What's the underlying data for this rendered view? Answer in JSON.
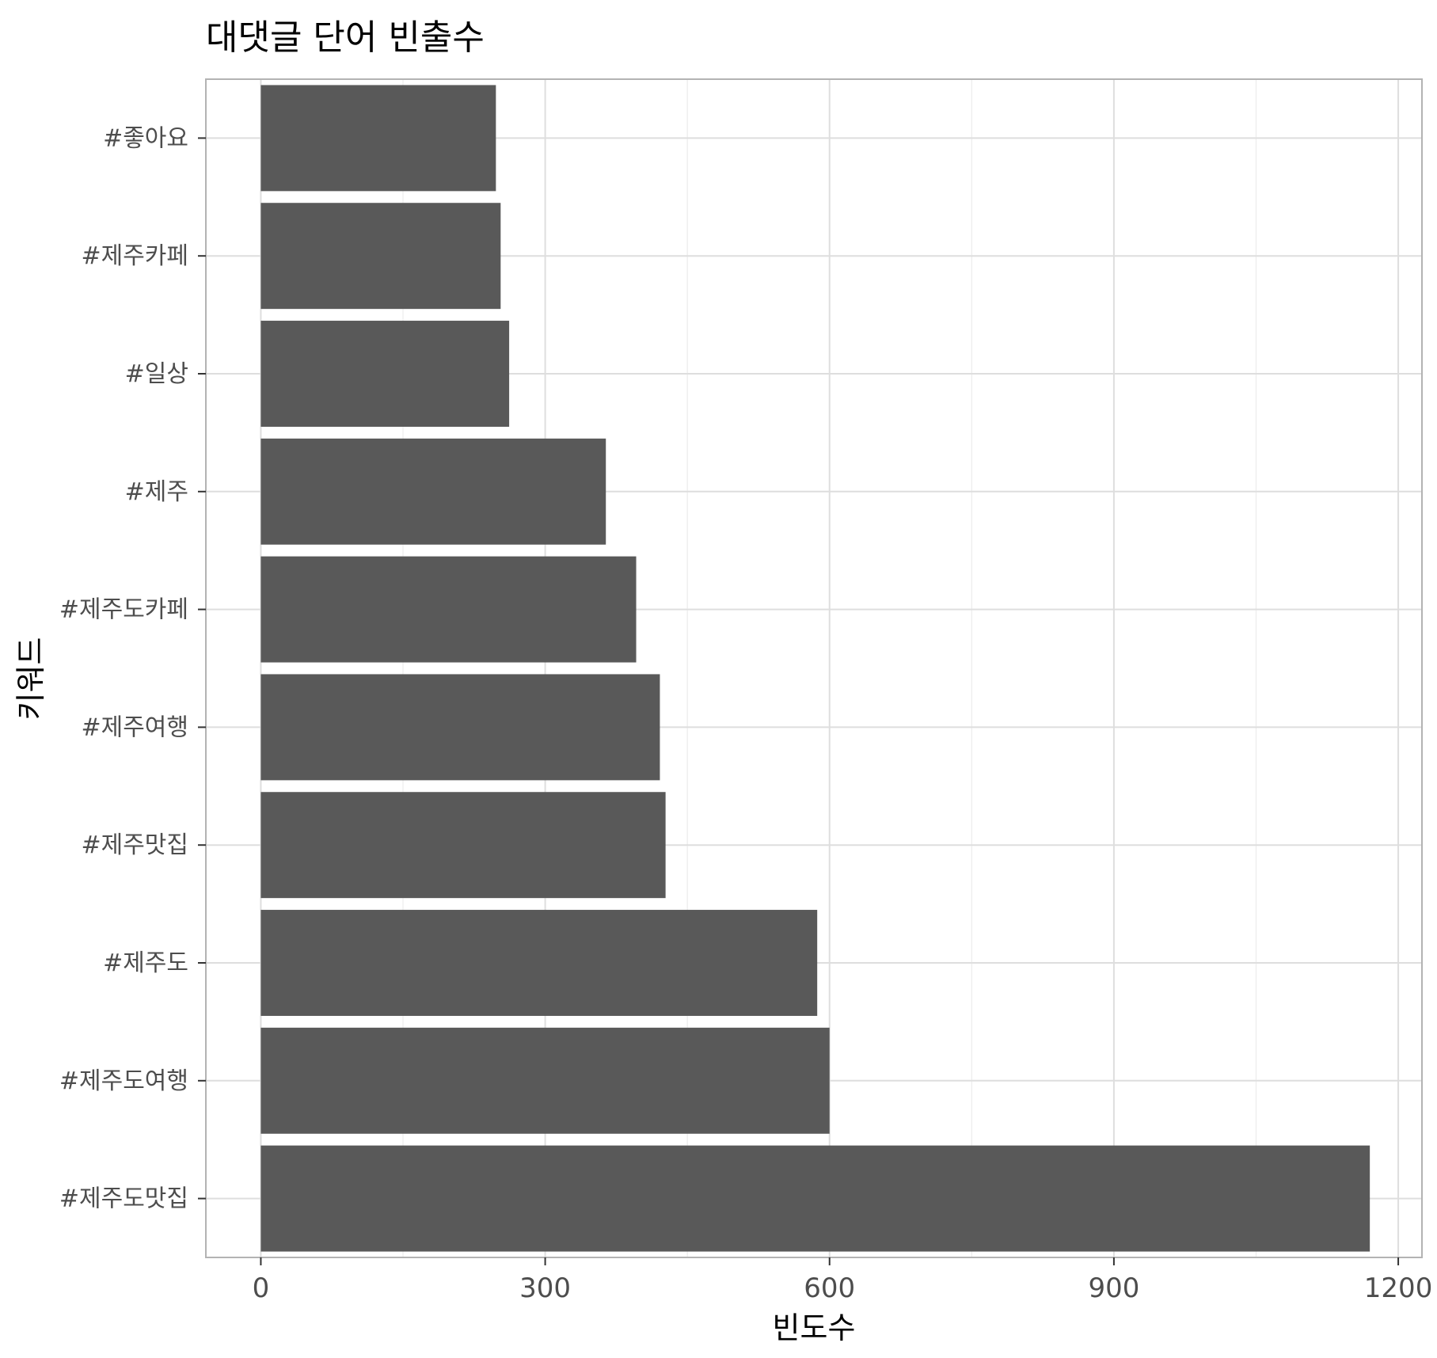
{
  "chart_data": {
    "type": "bar",
    "orientation": "horizontal",
    "title": "대댓글 단어 빈출수",
    "xlabel": "빈도수",
    "ylabel": "키워드",
    "categories": [
      "#제주도맛집",
      "#제주도여행",
      "#제주도",
      "#제주맛집",
      "#제주여행",
      "#제주도카페",
      "#제주",
      "#일상",
      "#제주카페",
      "#좋아요"
    ],
    "values": [
      1170,
      600,
      587,
      427,
      421,
      396,
      364,
      262,
      253,
      248
    ],
    "xlim": [
      -58,
      1225
    ],
    "xticks": [
      0,
      300,
      600,
      900,
      1200
    ],
    "grid": true,
    "bar_color": "#595959"
  }
}
